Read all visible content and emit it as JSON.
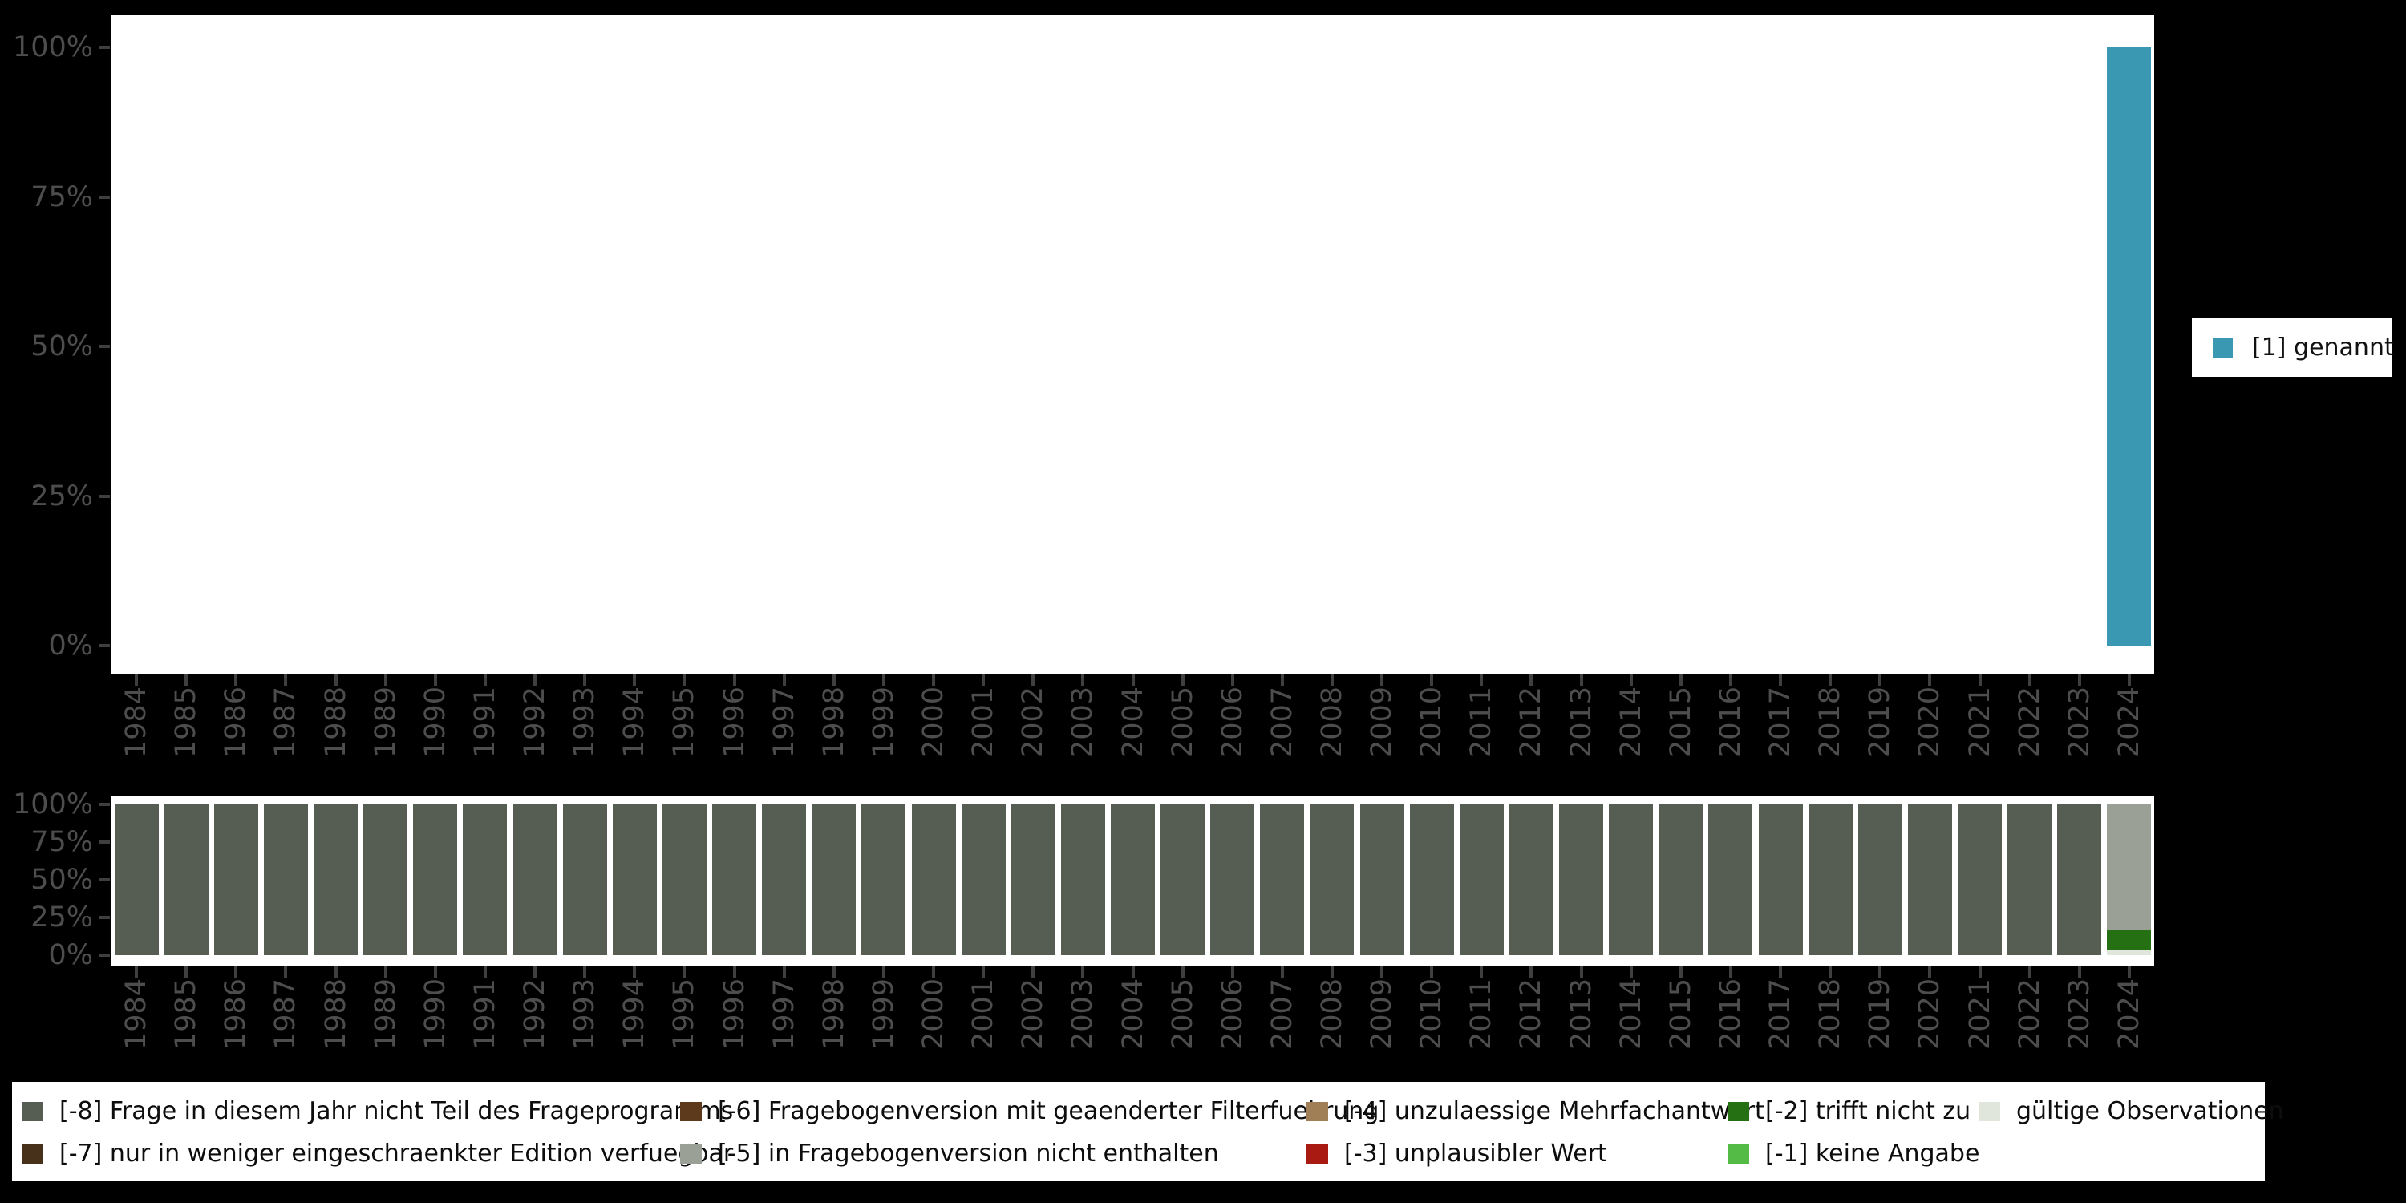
{
  "colors": {
    "background": "#000000",
    "panel": "#ffffff",
    "axis_text": "#4d4d4d",
    "axis_tick": "#3f3f3f",
    "legend_text": "#0d0d0d"
  },
  "axes": {
    "y_tick_labels_top_to_bottom": [
      "100%",
      "75%",
      "50%",
      "25%",
      "0%"
    ]
  },
  "legend_top": {
    "items": [
      {
        "label": "[1] genannt",
        "color": "#3a98b2"
      }
    ]
  },
  "legend_bottom": {
    "columns": [
      {
        "items": [
          {
            "label": "[-8] Frage in diesem Jahr nicht Teil des Frageprogramms",
            "color": "#565e54"
          },
          {
            "label": "[-7] nur in weniger eingeschraenkter Edition verfuegbar",
            "color": "#48311b"
          }
        ]
      },
      {
        "items": [
          {
            "label": "[-6] Fragebogenversion mit geaenderter Filterfuehrung",
            "color": "#5d3a1b"
          },
          {
            "label": "[-5] in Fragebogenversion nicht enthalten",
            "color": "#9aa096"
          }
        ]
      },
      {
        "items": [
          {
            "label": "[-4] unzulaessige Mehrfachantwort",
            "color": "#a07e56"
          },
          {
            "label": "[-3] unplausibler Wert",
            "color": "#a91b12"
          }
        ]
      },
      {
        "items": [
          {
            "label": "[-2] trifft nicht zu",
            "color": "#247013"
          },
          {
            "label": "[-1] keine Angabe",
            "color": "#54bb46"
          }
        ]
      },
      {
        "items": [
          {
            "label": "gültige Observationen",
            "color": "#e1e6dd"
          }
        ]
      }
    ]
  },
  "chart_data": [
    {
      "type": "bar",
      "stacked": true,
      "unit": "percent",
      "title": "",
      "xlabel": "",
      "ylabel": "",
      "ylim": [
        0,
        100
      ],
      "y_ticks": [
        "0%",
        "25%",
        "50%",
        "75%",
        "100%"
      ],
      "legend_position": "right",
      "grid": false,
      "categories": [
        "1984",
        "1985",
        "1986",
        "1987",
        "1988",
        "1989",
        "1990",
        "1991",
        "1992",
        "1993",
        "1994",
        "1995",
        "1996",
        "1997",
        "1998",
        "1999",
        "2000",
        "2001",
        "2002",
        "2003",
        "2004",
        "2005",
        "2006",
        "2007",
        "2008",
        "2009",
        "2010",
        "2011",
        "2012",
        "2013",
        "2014",
        "2015",
        "2016",
        "2017",
        "2018",
        "2019",
        "2020",
        "2021",
        "2022",
        "2023",
        "2024"
      ],
      "series": [
        {
          "name": "[1] genannt",
          "color": "#3a98b2",
          "values": [
            0,
            0,
            0,
            0,
            0,
            0,
            0,
            0,
            0,
            0,
            0,
            0,
            0,
            0,
            0,
            0,
            0,
            0,
            0,
            0,
            0,
            0,
            0,
            0,
            0,
            0,
            0,
            0,
            0,
            0,
            0,
            0,
            0,
            0,
            0,
            0,
            0,
            0,
            0,
            0,
            100
          ]
        }
      ]
    },
    {
      "type": "bar",
      "stacked": true,
      "unit": "percent",
      "title": "",
      "xlabel": "",
      "ylabel": "",
      "ylim": [
        0,
        100
      ],
      "y_ticks": [
        "0%",
        "25%",
        "50%",
        "75%",
        "100%"
      ],
      "legend_position": "bottom",
      "grid": false,
      "stack_order": "bottom_to_top",
      "categories": [
        "1984",
        "1985",
        "1986",
        "1987",
        "1988",
        "1989",
        "1990",
        "1991",
        "1992",
        "1993",
        "1994",
        "1995",
        "1996",
        "1997",
        "1998",
        "1999",
        "2000",
        "2001",
        "2002",
        "2003",
        "2004",
        "2005",
        "2006",
        "2007",
        "2008",
        "2009",
        "2010",
        "2011",
        "2012",
        "2013",
        "2014",
        "2015",
        "2016",
        "2017",
        "2018",
        "2019",
        "2020",
        "2021",
        "2022",
        "2023",
        "2024"
      ],
      "series": [
        {
          "name": "gültige Observationen",
          "color": "#e1e6dd",
          "values": [
            0,
            0,
            0,
            0,
            0,
            0,
            0,
            0,
            0,
            0,
            0,
            0,
            0,
            0,
            0,
            0,
            0,
            0,
            0,
            0,
            0,
            0,
            0,
            0,
            0,
            0,
            0,
            0,
            0,
            0,
            0,
            0,
            0,
            0,
            0,
            0,
            0,
            0,
            0,
            0,
            3.7
          ]
        },
        {
          "name": "[-2] trifft nicht zu",
          "color": "#247013",
          "values": [
            0,
            0,
            0,
            0,
            0,
            0,
            0,
            0,
            0,
            0,
            0,
            0,
            0,
            0,
            0,
            0,
            0,
            0,
            0,
            0,
            0,
            0,
            0,
            0,
            0,
            0,
            0,
            0,
            0,
            0,
            0,
            0,
            0,
            0,
            0,
            0,
            0,
            0,
            0,
            0,
            12.9
          ]
        },
        {
          "name": "[-5] in Fragebogenversion nicht enthalten",
          "color": "#9aa096",
          "values": [
            0,
            0,
            0,
            0,
            0,
            0,
            0,
            0,
            0,
            0,
            0,
            0,
            0,
            0,
            0,
            0,
            0,
            0,
            0,
            0,
            0,
            0,
            0,
            0,
            0,
            0,
            0,
            0,
            0,
            0,
            0,
            0,
            0,
            0,
            0,
            0,
            0,
            0,
            0,
            0,
            83.4
          ]
        },
        {
          "name": "[-8] Frage in diesem Jahr nicht Teil des Frageprogramms",
          "color": "#565e54",
          "values": [
            100,
            100,
            100,
            100,
            100,
            100,
            100,
            100,
            100,
            100,
            100,
            100,
            100,
            100,
            100,
            100,
            100,
            100,
            100,
            100,
            100,
            100,
            100,
            100,
            100,
            100,
            100,
            100,
            100,
            100,
            100,
            100,
            100,
            100,
            100,
            100,
            100,
            100,
            100,
            100,
            0
          ]
        }
      ]
    }
  ]
}
